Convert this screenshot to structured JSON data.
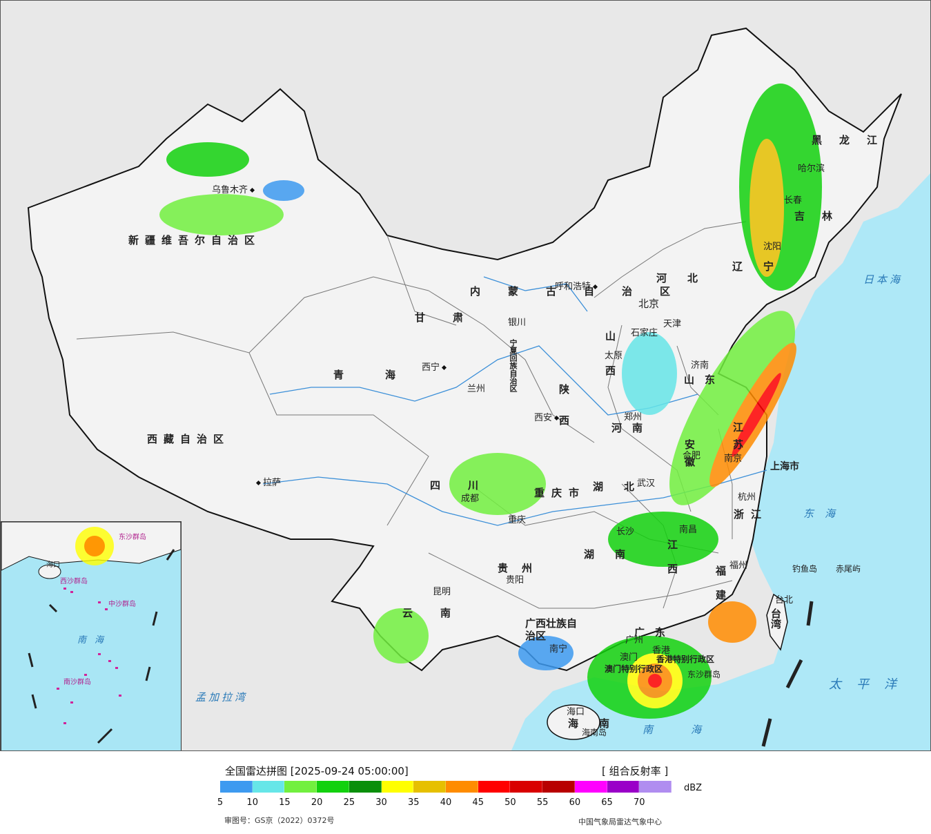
{
  "legend": {
    "title": "全国雷达拼图 [2025-09-24 05:00:00]",
    "product": "[ 组合反射率 ]",
    "unit": "dBZ",
    "bins": [
      {
        "min": 5,
        "color": "#3d9af0"
      },
      {
        "min": 10,
        "color": "#66e6e8"
      },
      {
        "min": 15,
        "color": "#72f03f"
      },
      {
        "min": 20,
        "color": "#12d10e"
      },
      {
        "min": 25,
        "color": "#098f0a"
      },
      {
        "min": 30,
        "color": "#ffff00"
      },
      {
        "min": 35,
        "color": "#e6c000"
      },
      {
        "min": 40,
        "color": "#ff8c00"
      },
      {
        "min": 45,
        "color": "#ff0000"
      },
      {
        "min": 50,
        "color": "#d90000"
      },
      {
        "min": 55,
        "color": "#b80000"
      },
      {
        "min": 60,
        "color": "#ff00ff"
      },
      {
        "min": 65,
        "color": "#9a00c8"
      },
      {
        "min": 70,
        "color": "#b08df0"
      }
    ],
    "ticks": [
      "5",
      "10",
      "15",
      "20",
      "25",
      "30",
      "35",
      "40",
      "45",
      "50",
      "55",
      "60",
      "65",
      "70"
    ],
    "review_number": "审图号：GS京（2022）0372号",
    "credit": "中国气象局雷达气象中心"
  },
  "map": {
    "cities": [
      {
        "name": "乌鲁木齐",
        "dot_after": true
      },
      {
        "name": "呼和浩特",
        "dot_after": true
      },
      {
        "name": "北京",
        "dot_after": false
      },
      {
        "name": "天津",
        "dot_after": false
      },
      {
        "name": "石家庄",
        "dot_after": false
      },
      {
        "name": "太原",
        "dot_after": false
      },
      {
        "name": "济南",
        "dot_after": false
      },
      {
        "name": "银川",
        "dot_after": false
      },
      {
        "name": "西宁",
        "dot_after": true
      },
      {
        "name": "兰州",
        "dot_after": false
      },
      {
        "name": "西安",
        "dot_after": true
      },
      {
        "name": "郑州",
        "dot_after": false
      },
      {
        "name": "合肥",
        "dot_after": false
      },
      {
        "name": "南京",
        "dot_after": false
      },
      {
        "name": "上海市",
        "dot_after": false
      },
      {
        "name": "武汉",
        "dot_after": false
      },
      {
        "name": "成都",
        "dot_after": false
      },
      {
        "name": "重庆",
        "dot_after": false
      },
      {
        "name": "拉萨",
        "dot_after": false
      },
      {
        "name": "长沙",
        "dot_after": false
      },
      {
        "name": "南昌",
        "dot_after": false
      },
      {
        "name": "杭州",
        "dot_after": false
      },
      {
        "name": "福州",
        "dot_after": false
      },
      {
        "name": "贵阳",
        "dot_after": false
      },
      {
        "name": "昆明",
        "dot_after": false
      },
      {
        "name": "南宁",
        "dot_after": false
      },
      {
        "name": "广州",
        "dot_after": false
      },
      {
        "name": "香港",
        "dot_after": false
      },
      {
        "name": "澳门",
        "dot_after": false
      },
      {
        "name": "海口",
        "dot_after": false
      },
      {
        "name": "台北",
        "dot_after": false
      },
      {
        "name": "哈尔滨",
        "dot_after": false
      },
      {
        "name": "长春",
        "dot_after": false
      },
      {
        "name": "沈阳",
        "dot_after": false
      },
      {
        "name": "钓鱼岛",
        "dot_after": false
      },
      {
        "name": "赤尾屿",
        "dot_after": false
      },
      {
        "name": "海南岛",
        "dot_after": false
      }
    ],
    "regions": [
      "新疆维吾尔自治区",
      "西藏自治区",
      "青海",
      "甘肃",
      "内蒙古自治区",
      "黑龙江",
      "吉林",
      "辽宁",
      "河北",
      "山西",
      "山东",
      "河南",
      "陕西",
      "四川",
      "重庆市",
      "湖北",
      "湖南",
      "安徽",
      "江苏",
      "浙江",
      "江西",
      "福建",
      "贵州",
      "云南",
      "广西壮族自治区",
      "广东",
      "海南",
      "台湾",
      "宁夏回族自治区",
      "香港特别行政区",
      "澳门特别行政区",
      "东沙群岛"
    ],
    "seas": [
      "日本海",
      "东海",
      "太平洋",
      "南海",
      "孟加拉湾"
    ]
  },
  "inset": {
    "labels": [
      "南海",
      "东沙群岛",
      "西沙群岛",
      "中沙群岛",
      "南沙群岛",
      "海口"
    ]
  }
}
